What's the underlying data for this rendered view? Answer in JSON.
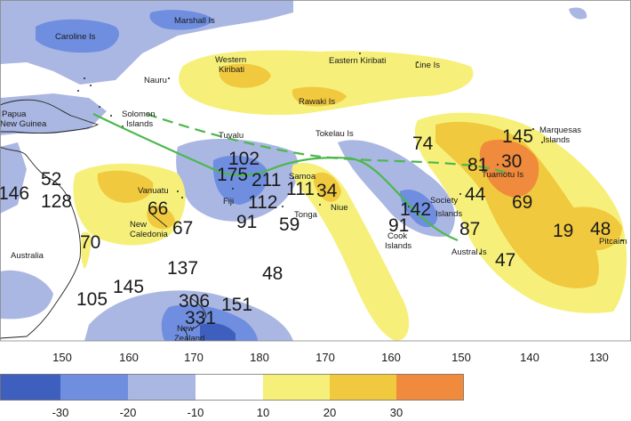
{
  "colors": {
    "ocean": "#ffffff",
    "land": "#ffffff",
    "coast": "#222222",
    "blue_dark": "#3f5fbf",
    "blue_mid": "#6f8ee0",
    "blue_light": "#aab7e3",
    "yellow_light": "#f6f07a",
    "yellow_mid": "#f1c93e",
    "orange": "#f08a3c",
    "spcz_line": "#4cb84c"
  },
  "labels": {
    "caroline": "Caroline Is",
    "marshall": "Marshall Is",
    "western_kiribati_1": "Western",
    "western_kiribati_2": "Kiribati",
    "eastern_kiribati": "Eastern Kiribati",
    "line_is": "Line Is",
    "nauru": "Nauru",
    "rawaki": "Rawaki Is",
    "papua_1": "Papua",
    "papua_2": "New Guinea",
    "solomon_1": "Solomon",
    "solomon_2": "Islands",
    "tuvalu": "Tuvalu",
    "tokelau": "Tokelau Is",
    "marquesas_1": "Marquesas",
    "marquesas_2": "Islands",
    "tuamotu": "Tuamotu Is",
    "vanuatu": "Vanuatu",
    "fiji": "Fiji",
    "samoa": "Samoa",
    "tonga": "Tonga",
    "niue": "Niue",
    "society_1": "Society",
    "society_2": "Islands",
    "cook_1": "Cook",
    "cook_2": "Islands",
    "austral": "Austral Is",
    "new_caledonia_1": "New",
    "new_caledonia_2": "Caledonia",
    "pitcairn": "Pitcairn",
    "australia": "Australia",
    "new_zealand_1": "New",
    "new_zealand_2": "Zealand"
  },
  "values": {
    "v146": "146",
    "v52": "52",
    "v128": "128",
    "v70": "70",
    "v66": "66",
    "v67": "67",
    "v102": "102",
    "v175": "175",
    "v211": "211",
    "v111": "111",
    "v34": "34",
    "v112": "112",
    "v91a": "91",
    "v59": "59",
    "v74": "74",
    "v81": "81",
    "v30": "30",
    "v145a": "145",
    "v44": "44",
    "v69": "69",
    "v142": "142",
    "v91b": "91",
    "v87": "87",
    "v47": "47",
    "v19": "19",
    "v48a": "48",
    "v137": "137",
    "v48b": "48",
    "v105": "105",
    "v145b": "145",
    "v306": "306",
    "v331": "331",
    "v151": "151"
  },
  "lon_ticks": [
    "150",
    "160",
    "170",
    "180",
    "170",
    "160",
    "150",
    "140",
    "130"
  ],
  "colorbar": {
    "bins": [
      {
        "color": "#3f5fbf"
      },
      {
        "color": "#6f8ee0"
      },
      {
        "color": "#aab7e3"
      },
      {
        "color": "#ffffff"
      },
      {
        "color": "#f6f07a"
      },
      {
        "color": "#f1c93e"
      },
      {
        "color": "#f08a3c"
      }
    ],
    "tick_labels": [
      "-30",
      "-20",
      "-10",
      "10",
      "20",
      "30"
    ]
  }
}
